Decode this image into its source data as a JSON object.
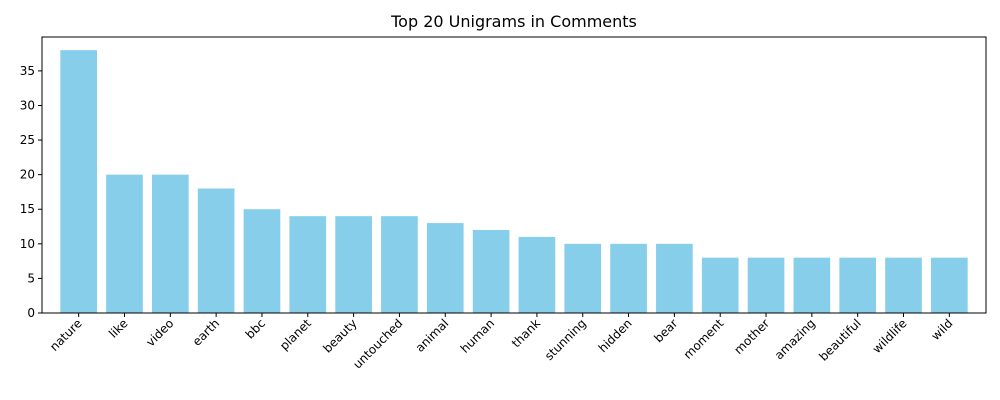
{
  "chart_data": {
    "type": "bar",
    "title": "Top 20 Unigrams in Comments",
    "xlabel": "",
    "ylabel": "",
    "categories": [
      "nature",
      "like",
      "video",
      "earth",
      "bbc",
      "planet",
      "beauty",
      "untouched",
      "animal",
      "human",
      "thank",
      "stunning",
      "hidden",
      "bear",
      "moment",
      "mother",
      "amazing",
      "beautiful",
      "wildlife",
      "wild"
    ],
    "values": [
      38,
      20,
      20,
      18,
      15,
      14,
      14,
      14,
      13,
      12,
      11,
      10,
      10,
      10,
      8,
      8,
      8,
      8,
      8,
      8
    ],
    "ylim": [
      0,
      39.9
    ],
    "yticks": [
      0,
      5,
      10,
      15,
      20,
      25,
      30,
      35
    ],
    "bar_color": "#87CEEB",
    "grid": false,
    "legend": "none"
  }
}
